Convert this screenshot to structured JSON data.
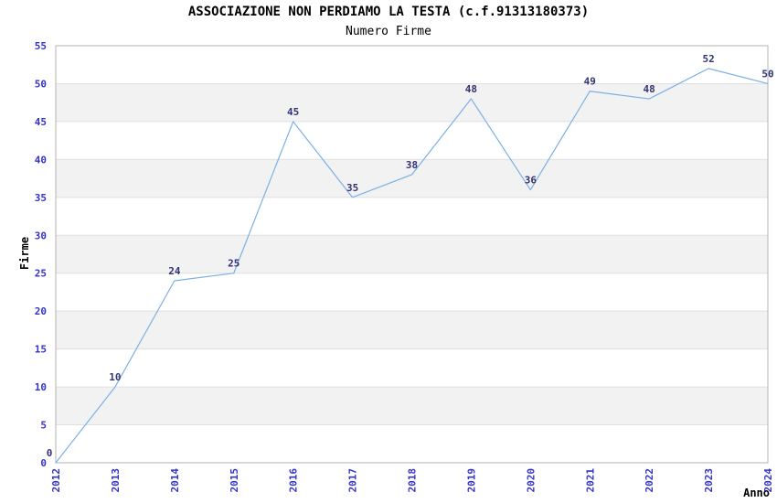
{
  "chart_data": {
    "type": "line",
    "title": "ASSOCIAZIONE NON PERDIAMO LA TESTA (c.f.91313180373)",
    "subtitle": "Numero Firme",
    "xlabel": "Anno",
    "ylabel": "Firme",
    "categories": [
      "2012",
      "2013",
      "2014",
      "2015",
      "2016",
      "2017",
      "2018",
      "2019",
      "2020",
      "2021",
      "2022",
      "2023",
      "2024"
    ],
    "values": [
      0,
      10,
      24,
      25,
      45,
      35,
      38,
      48,
      36,
      49,
      48,
      52,
      50
    ],
    "ylim": [
      0,
      55
    ],
    "ytick_step": 5,
    "yticks": [
      0,
      5,
      10,
      15,
      20,
      25,
      30,
      35,
      40,
      45,
      50,
      55
    ],
    "grid": true,
    "legend": "none",
    "colors": {
      "line": "#7cb0e5",
      "tick_label": "#3333cc",
      "data_label": "#333375",
      "band_even": "#ffffff",
      "band_odd": "#f2f2f2",
      "gridline": "#e0e0e0",
      "border": "#b3b3b3",
      "title_text": "#000000"
    }
  }
}
